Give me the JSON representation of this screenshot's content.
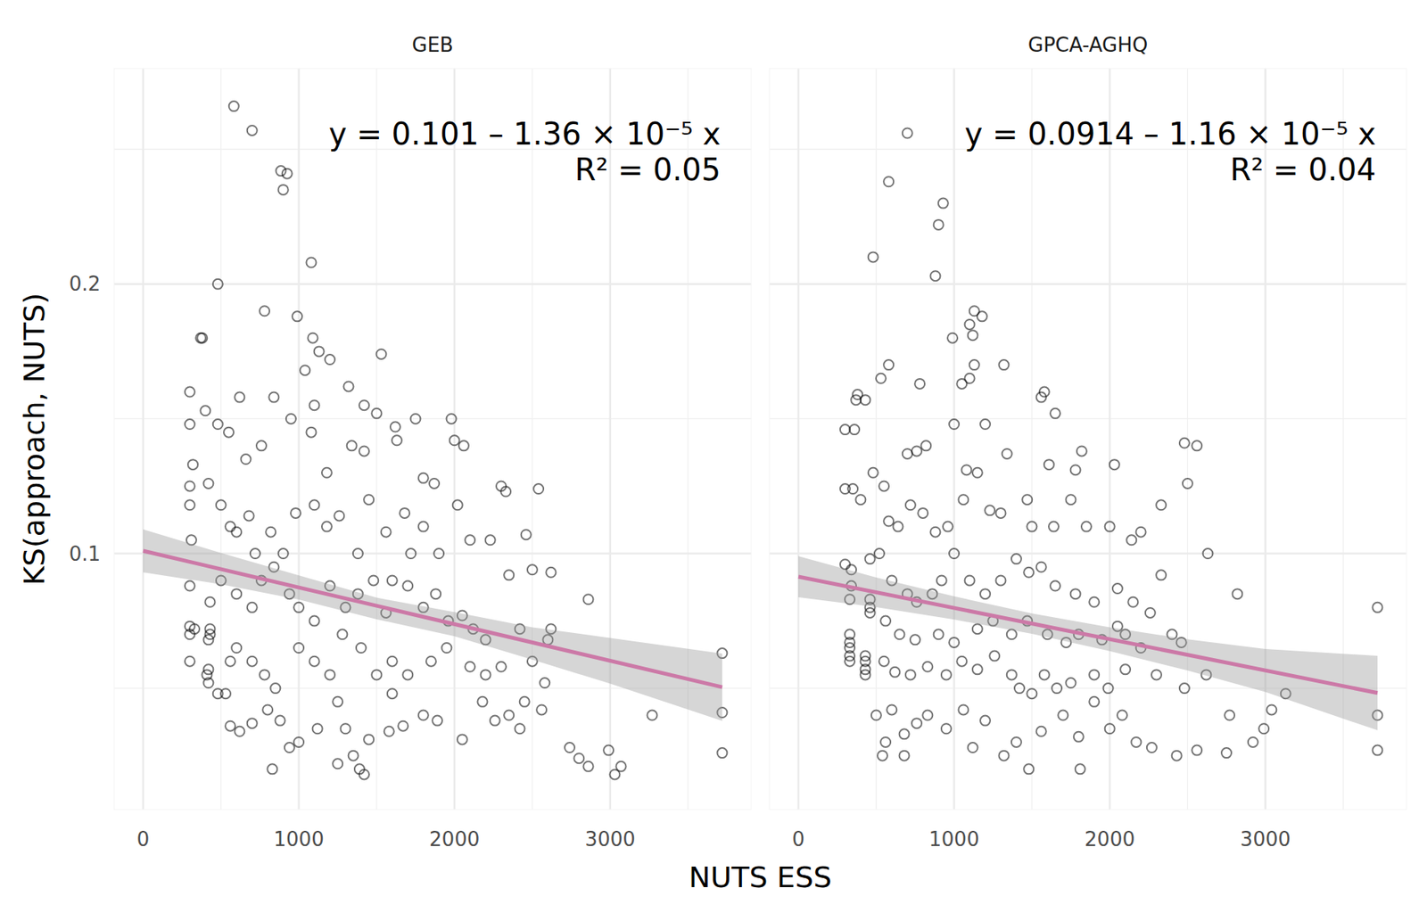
{
  "chart_data": {
    "type": "scatter",
    "x_label": "NUTS ESS",
    "y_label": "KS(approach, NUTS)",
    "xlim": [
      -186,
      3906
    ],
    "ylim": [
      0.005,
      0.28
    ],
    "xticks": [
      0,
      1000,
      2000,
      3000
    ],
    "yticks": [
      0.1,
      0.2
    ],
    "grid": true,
    "panels": [
      {
        "title": "GEB",
        "color": "#000000",
        "marker": "circle",
        "x": [
          583,
          700,
          885,
          925,
          900,
          1080,
          480,
          380,
          370,
          780,
          990,
          1090,
          1130,
          1200,
          1040,
          1530,
          300,
          620,
          840,
          1320,
          1100,
          1420,
          1500,
          1750,
          1980,
          2000,
          2060,
          300,
          400,
          480,
          550,
          660,
          760,
          950,
          1080,
          1180,
          1340,
          1420,
          1620,
          1630,
          1800,
          1870,
          2300,
          2540,
          2330,
          300,
          300,
          320,
          420,
          500,
          560,
          600,
          680,
          720,
          820,
          900,
          980,
          1100,
          1180,
          1260,
          1380,
          1450,
          1560,
          1680,
          1720,
          1800,
          1900,
          2020,
          2100,
          2230,
          2350,
          2460,
          2500,
          2620,
          2860,
          310,
          300,
          430,
          500,
          600,
          700,
          760,
          840,
          940,
          1000,
          1100,
          1200,
          1300,
          1380,
          1480,
          1560,
          1600,
          1700,
          1800,
          1880,
          1960,
          2050,
          2120,
          2200,
          2420,
          2620,
          2600,
          300,
          330,
          300,
          430,
          430,
          420,
          420,
          410,
          420,
          300,
          560,
          600,
          700,
          780,
          850,
          1000,
          1100,
          1200,
          1280,
          1400,
          1500,
          1600,
          1700,
          1850,
          1950,
          2100,
          2200,
          2300,
          2500,
          2580,
          2450,
          480,
          530,
          560,
          620,
          700,
          800,
          880,
          940,
          1000,
          1120,
          1250,
          1350,
          1390,
          1420,
          1300,
          1450,
          1580,
          1670,
          1800,
          1890,
          2050,
          2180,
          2260,
          2350,
          2420,
          2560,
          2740,
          2800,
          2860,
          2990,
          3030,
          3070,
          3270,
          3720,
          3720,
          3720,
          830,
          1250,
          1600
        ],
        "y": [
          0.266,
          0.257,
          0.242,
          0.241,
          0.235,
          0.208,
          0.2,
          0.18,
          0.18,
          0.19,
          0.188,
          0.18,
          0.175,
          0.172,
          0.168,
          0.174,
          0.16,
          0.158,
          0.158,
          0.162,
          0.155,
          0.155,
          0.152,
          0.15,
          0.15,
          0.142,
          0.14,
          0.148,
          0.153,
          0.148,
          0.145,
          0.135,
          0.14,
          0.15,
          0.145,
          0.13,
          0.14,
          0.138,
          0.147,
          0.142,
          0.128,
          0.126,
          0.125,
          0.124,
          0.123,
          0.125,
          0.118,
          0.133,
          0.126,
          0.118,
          0.11,
          0.108,
          0.114,
          0.1,
          0.108,
          0.1,
          0.115,
          0.118,
          0.11,
          0.114,
          0.1,
          0.12,
          0.108,
          0.115,
          0.1,
          0.11,
          0.1,
          0.118,
          0.105,
          0.105,
          0.092,
          0.107,
          0.094,
          0.093,
          0.083,
          0.105,
          0.088,
          0.082,
          0.09,
          0.085,
          0.08,
          0.09,
          0.095,
          0.085,
          0.08,
          0.075,
          0.088,
          0.08,
          0.085,
          0.09,
          0.078,
          0.09,
          0.088,
          0.08,
          0.085,
          0.075,
          0.077,
          0.072,
          0.068,
          0.072,
          0.072,
          0.068,
          0.073,
          0.072,
          0.07,
          0.072,
          0.07,
          0.068,
          0.057,
          0.055,
          0.052,
          0.06,
          0.06,
          0.065,
          0.06,
          0.055,
          0.05,
          0.065,
          0.06,
          0.055,
          0.07,
          0.065,
          0.055,
          0.06,
          0.055,
          0.06,
          0.065,
          0.058,
          0.055,
          0.058,
          0.06,
          0.052,
          0.045,
          0.048,
          0.048,
          0.036,
          0.034,
          0.037,
          0.042,
          0.038,
          0.028,
          0.03,
          0.035,
          0.022,
          0.025,
          0.02,
          0.018,
          0.035,
          0.031,
          0.034,
          0.036,
          0.04,
          0.038,
          0.031,
          0.045,
          0.038,
          0.04,
          0.035,
          0.042,
          0.028,
          0.024,
          0.021,
          0.027,
          0.018,
          0.021,
          0.04,
          0.063,
          0.041,
          0.026,
          0.02,
          0.045,
          0.048
        ],
        "fit": {
          "x": [
            0,
            3720
          ],
          "intercept": 0.101,
          "slope": -1.36e-05,
          "color": "#cc79a7",
          "band": {
            "x": [
              0,
              500,
              1000,
              1500,
              2000,
              2500,
              3000,
              3720
            ],
            "lower": [
              0.093,
              0.0886,
              0.0829,
              0.0756,
              0.0693,
              0.0606,
              0.0517,
              0.0379
            ],
            "upper": [
              0.109,
              0.1002,
              0.0919,
              0.0836,
              0.0783,
              0.0726,
              0.0687,
              0.0629
            ]
          }
        },
        "annotation": [
          "y = 0.101 – 1.36 × 10⁻⁵ x",
          "R² = 0.05"
        ]
      },
      {
        "title": "GPCA-AGHQ",
        "color": "#000000",
        "marker": "circle",
        "x": [
          700,
          580,
          930,
          900,
          880,
          480,
          1130,
          1180,
          1100,
          1120,
          990,
          1130,
          1320,
          1100,
          580,
          780,
          530,
          1050,
          380,
          370,
          430,
          300,
          360,
          1560,
          1580,
          1650,
          1000,
          1200,
          480,
          700,
          820,
          760,
          1080,
          1150,
          1340,
          1610,
          1820,
          1780,
          2030,
          2480,
          2560,
          2500,
          300,
          350,
          400,
          550,
          580,
          640,
          720,
          800,
          880,
          960,
          1060,
          1230,
          1300,
          1470,
          1500,
          1640,
          1750,
          1850,
          2000,
          2140,
          2200,
          2330,
          2630,
          300,
          340,
          460,
          520,
          600,
          700,
          760,
          860,
          920,
          1000,
          1100,
          1200,
          1300,
          1400,
          1480,
          1560,
          1650,
          1780,
          1900,
          2050,
          2150,
          2260,
          2330,
          2820,
          340,
          330,
          460,
          460,
          460,
          560,
          650,
          750,
          900,
          1000,
          1150,
          1250,
          1370,
          1470,
          1600,
          1720,
          1800,
          1950,
          2050,
          2100,
          2200,
          2400,
          2460,
          330,
          330,
          330,
          330,
          330,
          430,
          430,
          430,
          430,
          550,
          620,
          720,
          830,
          950,
          1050,
          1150,
          1260,
          1370,
          1420,
          1500,
          1580,
          1660,
          1750,
          1900,
          1990,
          2100,
          2300,
          2480,
          2620,
          2000,
          500,
          600,
          560,
          680,
          760,
          830,
          950,
          1060,
          1120,
          1200,
          1320,
          1400,
          1480,
          1560,
          1700,
          1800,
          1810,
          1900,
          2080,
          2170,
          2270,
          2430,
          2560,
          2750,
          2920,
          3040,
          3130,
          3720,
          3720,
          3720,
          2770,
          2990,
          540,
          680
        ],
        "y": [
          0.256,
          0.238,
          0.23,
          0.222,
          0.203,
          0.21,
          0.19,
          0.188,
          0.185,
          0.181,
          0.18,
          0.17,
          0.17,
          0.165,
          0.17,
          0.163,
          0.165,
          0.163,
          0.159,
          0.157,
          0.157,
          0.146,
          0.146,
          0.158,
          0.16,
          0.152,
          0.148,
          0.148,
          0.13,
          0.137,
          0.14,
          0.138,
          0.131,
          0.13,
          0.137,
          0.133,
          0.138,
          0.131,
          0.133,
          0.141,
          0.14,
          0.126,
          0.124,
          0.124,
          0.12,
          0.125,
          0.112,
          0.11,
          0.118,
          0.115,
          0.108,
          0.11,
          0.12,
          0.116,
          0.115,
          0.12,
          0.11,
          0.11,
          0.12,
          0.11,
          0.11,
          0.105,
          0.108,
          0.118,
          0.1,
          0.096,
          0.094,
          0.098,
          0.1,
          0.09,
          0.085,
          0.082,
          0.085,
          0.09,
          0.1,
          0.09,
          0.085,
          0.09,
          0.098,
          0.093,
          0.095,
          0.088,
          0.085,
          0.082,
          0.087,
          0.082,
          0.078,
          0.092,
          0.085,
          0.088,
          0.083,
          0.083,
          0.08,
          0.078,
          0.075,
          0.07,
          0.068,
          0.07,
          0.067,
          0.072,
          0.075,
          0.07,
          0.075,
          0.07,
          0.067,
          0.07,
          0.068,
          0.073,
          0.07,
          0.065,
          0.07,
          0.067,
          0.07,
          0.067,
          0.065,
          0.062,
          0.06,
          0.06,
          0.057,
          0.055,
          0.062,
          0.06,
          0.056,
          0.055,
          0.058,
          0.055,
          0.06,
          0.057,
          0.062,
          0.055,
          0.05,
          0.048,
          0.055,
          0.05,
          0.052,
          0.055,
          0.05,
          0.057,
          0.055,
          0.05,
          0.055,
          0.035,
          0.04,
          0.042,
          0.03,
          0.033,
          0.037,
          0.04,
          0.035,
          0.042,
          0.028,
          0.038,
          0.025,
          0.03,
          0.02,
          0.034,
          0.04,
          0.032,
          0.02,
          0.045,
          0.04,
          0.03,
          0.028,
          0.025,
          0.027,
          0.026,
          0.03,
          0.042,
          0.048,
          0.08,
          0.04,
          0.027,
          0.04,
          0.035,
          0.025,
          0.025
        ],
        "fit": {
          "x": [
            0,
            3720
          ],
          "intercept": 0.0914,
          "slope": -1.16e-05,
          "color": "#cc79a7",
          "band": {
            "x": [
              0,
              500,
              1000,
              1500,
              2000,
              2500,
              3000,
              3720
            ],
            "lower": [
              0.0838,
              0.0801,
              0.0755,
              0.0702,
              0.0638,
              0.0566,
              0.0486,
              0.0344
            ],
            "upper": [
              0.099,
              0.0911,
              0.0841,
              0.0778,
              0.0726,
              0.0682,
              0.0646,
              0.062
            ]
          }
        },
        "annotation": [
          "y = 0.0914 – 1.16 × 10⁻⁵ x",
          "R² = 0.04"
        ]
      }
    ]
  }
}
